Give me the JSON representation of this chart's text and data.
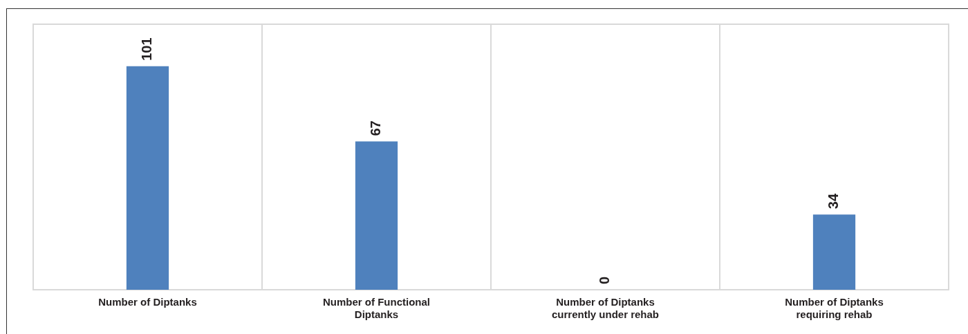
{
  "chart_data": {
    "type": "bar",
    "categories": [
      "Number of Diptanks",
      "Number of Functional Diptanks",
      "Number of Diptanks currently under rehab",
      "Number of Diptanks requiring rehab"
    ],
    "values": [
      101,
      67,
      0,
      34
    ],
    "color": "#4f81bd",
    "data_labels": true,
    "grid": "x",
    "tick_labels": "x"
  }
}
